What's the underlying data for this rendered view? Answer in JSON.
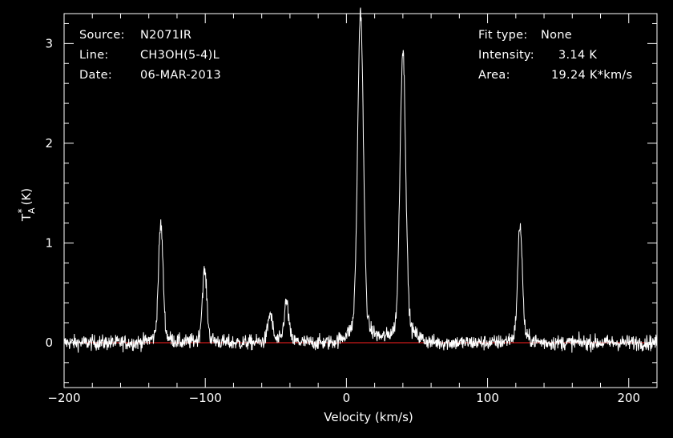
{
  "info": {
    "source_label": "Source:",
    "source_value": "N2071IR",
    "line_label": "Line:",
    "line_value": "CH3OH(5-4)L",
    "date_label": "Date:",
    "date_value": "06-MAR-2013",
    "fit_label": "Fit type:",
    "fit_value": "None",
    "intensity_label": "Intensity:",
    "intensity_value": "3.14 K",
    "area_label": "Area:",
    "area_value": "19.24 K*km/s"
  },
  "colors": {
    "background": "#000000",
    "foreground": "#ffffff",
    "baseline": "#ff2020"
  },
  "chart_data": {
    "type": "line",
    "xlabel": "Velocity (km/s)",
    "ylabel": "T*A (K)",
    "xlim": [
      -200,
      220
    ],
    "ylim": [
      -0.45,
      3.3
    ],
    "x_ticks": [
      -200,
      -100,
      0,
      100,
      200
    ],
    "x_tick_labels": [
      "-200",
      "-100",
      "0",
      "100",
      "200"
    ],
    "y_ticks": [
      0,
      1,
      2,
      3
    ],
    "y_tick_labels": [
      "0",
      "1",
      "2",
      "3"
    ],
    "baseline": 0,
    "noise_rms": 0.06,
    "series": [
      {
        "peaks": [
          {
            "x": -131.5,
            "y": 1.12
          },
          {
            "x": -100.5,
            "y": 0.68
          },
          {
            "x": -54.0,
            "y": 0.27
          },
          {
            "x": -42.5,
            "y": 0.38
          },
          {
            "x": 10.0,
            "y": 3.14
          },
          {
            "x": 40.0,
            "y": 2.77
          },
          {
            "x": 123.0,
            "y": 1.12
          }
        ]
      }
    ]
  }
}
